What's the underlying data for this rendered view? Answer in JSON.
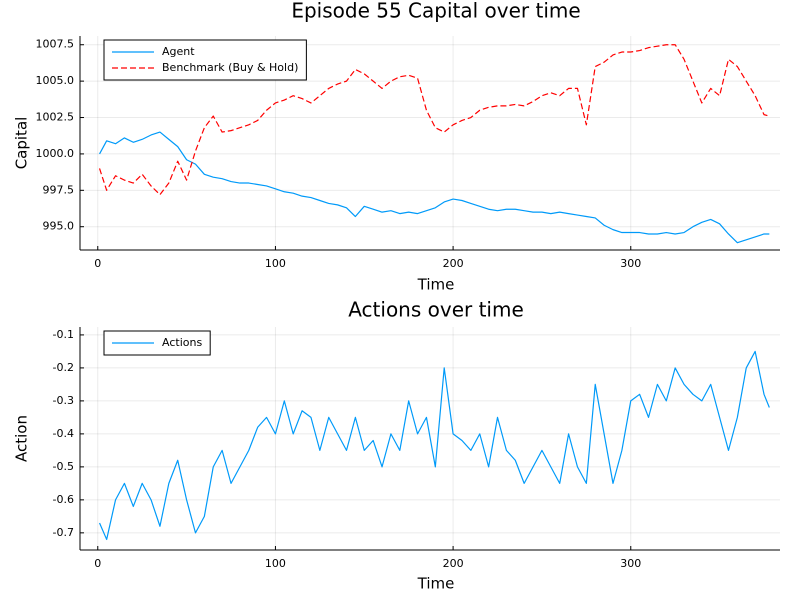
{
  "chart_data": [
    {
      "type": "line",
      "title": "Episode 55 Capital over time",
      "x_label": "Time",
      "y_label": "Capital",
      "x": [
        1,
        5,
        10,
        15,
        20,
        25,
        30,
        35,
        40,
        45,
        50,
        55,
        60,
        65,
        70,
        75,
        80,
        85,
        90,
        95,
        100,
        105,
        110,
        115,
        120,
        125,
        130,
        135,
        140,
        145,
        150,
        155,
        160,
        165,
        170,
        175,
        180,
        185,
        190,
        195,
        200,
        205,
        210,
        215,
        220,
        225,
        230,
        235,
        240,
        245,
        250,
        255,
        260,
        265,
        270,
        275,
        280,
        285,
        290,
        295,
        300,
        305,
        310,
        315,
        320,
        325,
        330,
        335,
        340,
        345,
        350,
        355,
        360,
        365,
        370,
        375,
        378
      ],
      "series": [
        {
          "name": "Agent",
          "color": "#009af9",
          "dashed": false,
          "values": [
            1000.0,
            1000.9,
            1000.7,
            1001.1,
            1000.8,
            1001.0,
            1001.3,
            1001.5,
            1001.0,
            1000.5,
            999.6,
            999.3,
            998.6,
            998.4,
            998.3,
            998.1,
            998.0,
            998.0,
            997.9,
            997.8,
            997.6,
            997.4,
            997.3,
            997.1,
            997.0,
            996.8,
            996.6,
            996.5,
            996.3,
            995.7,
            996.4,
            996.2,
            996.0,
            996.1,
            995.9,
            996.0,
            995.9,
            996.1,
            996.3,
            996.7,
            996.9,
            996.8,
            996.6,
            996.4,
            996.2,
            996.1,
            996.2,
            996.2,
            996.1,
            996.0,
            996.0,
            995.9,
            996.0,
            995.9,
            995.8,
            995.7,
            995.6,
            995.1,
            994.8,
            994.6,
            994.6,
            994.6,
            994.5,
            994.5,
            994.6,
            994.5,
            994.6,
            995.0,
            995.3,
            995.5,
            995.2,
            994.5,
            993.9,
            994.1,
            994.3,
            994.5,
            994.5
          ]
        },
        {
          "name": "Benchmark (Buy & Hold)",
          "color": "#ff0000",
          "dashed": true,
          "values": [
            999.0,
            997.5,
            998.5,
            998.2,
            998.0,
            998.6,
            997.8,
            997.2,
            998.0,
            999.5,
            998.2,
            1000.2,
            1001.8,
            1002.6,
            1001.5,
            1001.6,
            1001.8,
            1002.0,
            1002.3,
            1003.0,
            1003.5,
            1003.7,
            1004.0,
            1003.8,
            1003.5,
            1004.0,
            1004.5,
            1004.8,
            1005.0,
            1005.8,
            1005.5,
            1005.0,
            1004.5,
            1005.0,
            1005.3,
            1005.4,
            1005.2,
            1003.0,
            1001.8,
            1001.5,
            1002.0,
            1002.3,
            1002.5,
            1003.0,
            1003.2,
            1003.3,
            1003.3,
            1003.4,
            1003.3,
            1003.6,
            1004.0,
            1004.2,
            1004.0,
            1004.5,
            1004.5,
            1002.0,
            1006.0,
            1006.3,
            1006.8,
            1007.0,
            1007.0,
            1007.1,
            1007.3,
            1007.4,
            1007.5,
            1007.5,
            1006.5,
            1005.0,
            1003.5,
            1004.5,
            1004.0,
            1006.5,
            1006.0,
            1005.0,
            1004.0,
            1002.7,
            1002.6
          ]
        }
      ],
      "xlim": [
        -10,
        384
      ],
      "xticks": [
        0,
        100,
        200,
        300
      ],
      "ylim": [
        993.4,
        1008.1
      ],
      "yticks": [
        {
          "value": 995,
          "label": "995.0"
        },
        {
          "value": 997.5,
          "label": "997.5"
        },
        {
          "value": 1000,
          "label": "1000.0"
        },
        {
          "value": 1002.5,
          "label": "1002.5"
        },
        {
          "value": 1005,
          "label": "1005.0"
        },
        {
          "value": 1007.5,
          "label": "1007.5"
        }
      ],
      "grid": true,
      "legend": "top-left"
    },
    {
      "type": "line",
      "title": "Actions over time",
      "x_label": "Time",
      "y_label": "Action",
      "x": [
        1,
        5,
        10,
        15,
        20,
        25,
        30,
        35,
        40,
        45,
        50,
        55,
        60,
        65,
        70,
        75,
        80,
        85,
        90,
        95,
        100,
        105,
        110,
        115,
        120,
        125,
        130,
        135,
        140,
        145,
        150,
        155,
        160,
        165,
        170,
        175,
        180,
        185,
        190,
        195,
        200,
        205,
        210,
        215,
        220,
        225,
        230,
        235,
        240,
        245,
        250,
        255,
        260,
        265,
        270,
        275,
        280,
        285,
        290,
        295,
        300,
        305,
        310,
        315,
        320,
        325,
        330,
        335,
        340,
        345,
        350,
        355,
        360,
        365,
        370,
        375,
        378
      ],
      "series": [
        {
          "name": "Actions",
          "color": "#009af9",
          "dashed": false,
          "values": [
            -0.67,
            -0.72,
            -0.6,
            -0.55,
            -0.62,
            -0.55,
            -0.6,
            -0.68,
            -0.55,
            -0.48,
            -0.6,
            -0.7,
            -0.65,
            -0.5,
            -0.45,
            -0.55,
            -0.5,
            -0.45,
            -0.38,
            -0.35,
            -0.4,
            -0.3,
            -0.4,
            -0.33,
            -0.35,
            -0.45,
            -0.35,
            -0.4,
            -0.45,
            -0.35,
            -0.45,
            -0.42,
            -0.5,
            -0.4,
            -0.45,
            -0.3,
            -0.4,
            -0.35,
            -0.5,
            -0.2,
            -0.4,
            -0.42,
            -0.45,
            -0.4,
            -0.5,
            -0.35,
            -0.45,
            -0.48,
            -0.55,
            -0.5,
            -0.45,
            -0.5,
            -0.55,
            -0.4,
            -0.5,
            -0.55,
            -0.25,
            -0.4,
            -0.55,
            -0.45,
            -0.3,
            -0.28,
            -0.35,
            -0.25,
            -0.3,
            -0.2,
            -0.25,
            -0.28,
            -0.3,
            -0.25,
            -0.35,
            -0.45,
            -0.35,
            -0.2,
            -0.15,
            -0.28,
            -0.32
          ]
        }
      ],
      "xlim": [
        -10,
        384
      ],
      "xticks": [
        0,
        100,
        200,
        300
      ],
      "ylim": [
        -0.752,
        -0.076
      ],
      "yticks": [
        -0.7,
        -0.6,
        -0.5,
        -0.4,
        -0.3,
        -0.2,
        -0.1
      ],
      "grid": true,
      "legend": "top-left"
    }
  ]
}
